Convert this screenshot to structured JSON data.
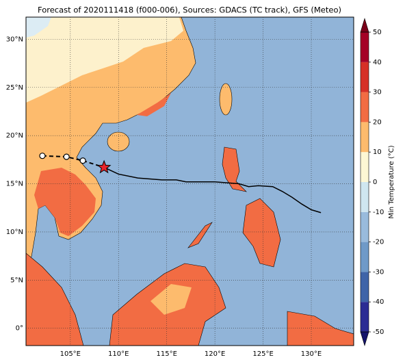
{
  "map": {
    "title": "Forecast of 2020111418 (f000-006), Sources: GDACS (TC track), GFS (Meteo)",
    "xlim": [
      100.4,
      134.4
    ],
    "ylim": [
      -1.8,
      32.3
    ],
    "xticks": [
      {
        "value": 105,
        "label": "105°E"
      },
      {
        "value": 110,
        "label": "110°E"
      },
      {
        "value": 115,
        "label": "115°E"
      },
      {
        "value": 120,
        "label": "120°E"
      },
      {
        "value": 125,
        "label": "125°E"
      },
      {
        "value": 130,
        "label": "130°E"
      }
    ],
    "yticks": [
      {
        "value": 0,
        "label": "0°"
      },
      {
        "value": 5,
        "label": "5°N"
      },
      {
        "value": 10,
        "label": "10°N"
      },
      {
        "value": 15,
        "label": "15°N"
      },
      {
        "value": 20,
        "label": "20°N"
      },
      {
        "value": 25,
        "label": "25°N"
      },
      {
        "value": 30,
        "label": "30°N"
      }
    ],
    "grid": true,
    "past": {
      "lon": [
        102.1,
        104.6,
        106.3
      ],
      "lat": [
        17.9,
        17.8,
        17.4
      ]
    },
    "current": {
      "lon": 108.5,
      "lat": 16.7
    },
    "forecast": {
      "lon": [
        108.5,
        110,
        112,
        114.5,
        116,
        117,
        120,
        122.5,
        123.5,
        124.5,
        126,
        127,
        128,
        129,
        130,
        131
      ],
      "lat": [
        16.7,
        16.0,
        15.6,
        15.4,
        15.4,
        15.2,
        15.2,
        15.0,
        14.7,
        14.8,
        14.7,
        14.2,
        13.6,
        12.9,
        12.3,
        12.0
      ]
    },
    "colorbar": {
      "label": "Min Temperature (°C)",
      "lim": [
        -50,
        50
      ],
      "ticks": [
        -50,
        -40,
        -30,
        -20,
        -10,
        0,
        10,
        20,
        30,
        40,
        50
      ],
      "colors": [
        "#2b2c94",
        "#3f64a8",
        "#6f9ac8",
        "#99bbdc",
        "#cfe6f0",
        "#fdf7d4",
        "#fdbb6d",
        "#f26c43",
        "#d63027",
        "#a50026"
      ],
      "under_color": "#14136b",
      "over_color": "#7a0019"
    }
  }
}
